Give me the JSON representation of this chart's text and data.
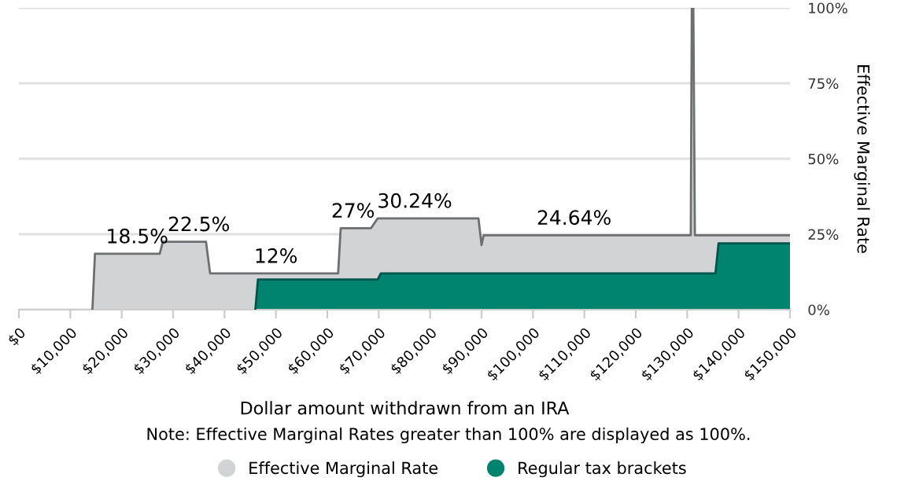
{
  "chart_data": {
    "type": "area",
    "xlabel": "Dollar amount withdrawn from an IRA",
    "ylabel": "Effective Marginal Rate",
    "xlim": [
      0,
      150000
    ],
    "ylim": [
      0,
      100
    ],
    "xticks": [
      {
        "value": 0,
        "label": "$0"
      },
      {
        "value": 10000,
        "label": "$10,000"
      },
      {
        "value": 20000,
        "label": "$20,000"
      },
      {
        "value": 30000,
        "label": "$30,000"
      },
      {
        "value": 40000,
        "label": "$40,000"
      },
      {
        "value": 50000,
        "label": "$50,000"
      },
      {
        "value": 60000,
        "label": "$60,000"
      },
      {
        "value": 70000,
        "label": "$70,000"
      },
      {
        "value": 80000,
        "label": "$80,000"
      },
      {
        "value": 90000,
        "label": "$90,000"
      },
      {
        "value": 100000,
        "label": "$100,000"
      },
      {
        "value": 110000,
        "label": "$110,000"
      },
      {
        "value": 120000,
        "label": "$120,000"
      },
      {
        "value": 130000,
        "label": "$130,000"
      },
      {
        "value": 140000,
        "label": "$140,000"
      },
      {
        "value": 150000,
        "label": "$150,000"
      }
    ],
    "yticks": [
      {
        "value": 0,
        "label": "0%"
      },
      {
        "value": 25,
        "label": "25%"
      },
      {
        "value": 50,
        "label": "50%"
      },
      {
        "value": 75,
        "label": "75%"
      },
      {
        "value": 100,
        "label": "100%"
      }
    ],
    "grid": "y",
    "legend": "bottom",
    "series": [
      {
        "name": "Effective Marginal Rate",
        "color": "#d1d3d4",
        "x": [
          14300,
          14800,
          27400,
          28000,
          36400,
          37200,
          62100,
          62600,
          68500,
          69800,
          89400,
          90000,
          90400,
          130700,
          130900,
          131200,
          131500,
          150000
        ],
        "values": [
          0,
          18.5,
          18.5,
          22.5,
          22.5,
          12,
          12,
          27,
          27,
          30.24,
          30.24,
          21.4,
          24.64,
          24.64,
          100,
          100,
          24.64,
          24.64
        ]
      },
      {
        "name": "Regular tax brackets",
        "color": "#00836f",
        "x": [
          46000,
          46500,
          69800,
          70400,
          135500,
          136100,
          150000
        ],
        "values": [
          0,
          10,
          10,
          12,
          12,
          22,
          22
        ]
      }
    ],
    "annotations": [
      {
        "text": "18.5%",
        "x": 23000,
        "y": 18.5
      },
      {
        "text": "22.5%",
        "x": 35000,
        "y": 22.5
      },
      {
        "text": "12%",
        "x": 50000,
        "y": 12
      },
      {
        "text": "27%",
        "x": 65000,
        "y": 27
      },
      {
        "text": "30.24%",
        "x": 77000,
        "y": 30.24
      },
      {
        "text": "24.64%",
        "x": 108000,
        "y": 24.64
      },
      "Note: Effective Marginal Rates greater than 100% are displayed as 100%."
    ]
  }
}
